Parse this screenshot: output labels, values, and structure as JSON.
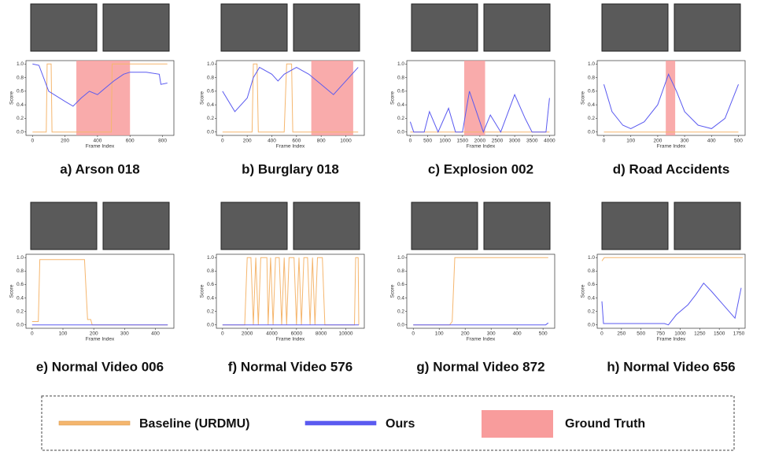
{
  "chart_data": [
    {
      "type": "line",
      "title": "a) Arson 018",
      "xlabel": "Frame Index",
      "ylabel": "Score",
      "xlim": [
        -40,
        870
      ],
      "xticks": [
        0,
        200,
        400,
        600,
        800
      ],
      "ylim": [
        -0.05,
        1.05
      ],
      "yticks": [
        {
          "value": 0,
          "label": "0.0"
        },
        {
          "value": 0.2,
          "label": "0.2"
        },
        {
          "value": 0.4,
          "label": "0.4"
        },
        {
          "value": 0.6,
          "label": "0.6"
        },
        {
          "value": 0.8,
          "label": "0.8"
        },
        {
          "value": 1,
          "label": "1.0"
        }
      ],
      "ground_truth": [
        [
          270,
          600
        ]
      ],
      "series": [
        {
          "x": [
            0,
            85,
            90,
            115,
            120,
            485,
            490,
            830
          ],
          "values": [
            0,
            0,
            1,
            1,
            0,
            0,
            1,
            1
          ]
        },
        {
          "x": [
            0,
            40,
            100,
            200,
            250,
            300,
            350,
            400,
            450,
            500,
            560,
            600,
            700,
            780,
            790,
            830
          ],
          "values": [
            1,
            0.98,
            0.6,
            0.45,
            0.38,
            0.5,
            0.6,
            0.55,
            0.65,
            0.75,
            0.85,
            0.88,
            0.88,
            0.85,
            0.7,
            0.72
          ]
        }
      ]
    },
    {
      "type": "line",
      "title": "b) Burglary 018",
      "xlabel": "Frame Index",
      "ylabel": "Score",
      "xlim": [
        -50,
        1150
      ],
      "xticks": [
        0,
        200,
        400,
        600,
        800,
        1000
      ],
      "ylim": [
        -0.05,
        1.05
      ],
      "yticks": [
        {
          "value": 0,
          "label": "0.0"
        },
        {
          "value": 0.2,
          "label": "0.2"
        },
        {
          "value": 0.4,
          "label": "0.4"
        },
        {
          "value": 0.6,
          "label": "0.6"
        },
        {
          "value": 0.8,
          "label": "0.8"
        },
        {
          "value": 1,
          "label": "1.0"
        }
      ],
      "ground_truth": [
        [
          720,
          1060
        ]
      ],
      "series": [
        {
          "x": [
            0,
            240,
            250,
            280,
            290,
            500,
            520,
            560,
            570,
            1100
          ],
          "values": [
            0,
            0,
            1,
            1,
            0,
            0,
            1,
            1,
            0,
            0
          ]
        },
        {
          "x": [
            0,
            100,
            200,
            250,
            300,
            400,
            450,
            500,
            600,
            700,
            800,
            900,
            1000,
            1100
          ],
          "values": [
            0.6,
            0.3,
            0.5,
            0.8,
            0.95,
            0.85,
            0.75,
            0.85,
            0.95,
            0.85,
            0.7,
            0.55,
            0.75,
            0.95
          ]
        }
      ]
    },
    {
      "type": "line",
      "title": "c) Explosion 002",
      "xlabel": "Frame Index",
      "ylabel": "Score",
      "xlim": [
        -100,
        4150
      ],
      "xticks": [
        0,
        500,
        1000,
        1500,
        2000,
        2500,
        3000,
        3500,
        4000
      ],
      "ylim": [
        -0.05,
        1.05
      ],
      "yticks": [
        {
          "value": 0,
          "label": "0.0"
        },
        {
          "value": 0.2,
          "label": "0.2"
        },
        {
          "value": 0.4,
          "label": "0.4"
        },
        {
          "value": 0.6,
          "label": "0.6"
        },
        {
          "value": 0.8,
          "label": "0.8"
        },
        {
          "value": 1,
          "label": "1.0"
        }
      ],
      "ground_truth": [
        [
          1550,
          2150
        ]
      ],
      "series": [
        {
          "x": [
            0,
            4000
          ],
          "values": [
            0,
            0
          ]
        },
        {
          "x": [
            0,
            100,
            400,
            550,
            800,
            1100,
            1300,
            1500,
            1700,
            1900,
            2100,
            2300,
            2600,
            3000,
            3300,
            3500,
            3900,
            4000
          ],
          "values": [
            0.15,
            0,
            0,
            0.3,
            0,
            0.35,
            0,
            0,
            0.6,
            0.3,
            0,
            0.25,
            0,
            0.55,
            0.2,
            0,
            0,
            0.5
          ]
        }
      ]
    },
    {
      "type": "line",
      "title": "d) Road Accidents",
      "xlabel": "Frame Index",
      "ylabel": "Score",
      "xlim": [
        -25,
        525
      ],
      "xticks": [
        0,
        100,
        200,
        300,
        400,
        500
      ],
      "ylim": [
        -0.05,
        1.05
      ],
      "yticks": [
        {
          "value": 0,
          "label": "0.0"
        },
        {
          "value": 0.2,
          "label": "0.2"
        },
        {
          "value": 0.4,
          "label": "0.4"
        },
        {
          "value": 0.6,
          "label": "0.6"
        },
        {
          "value": 0.8,
          "label": "0.8"
        },
        {
          "value": 1,
          "label": "1.0"
        }
      ],
      "ground_truth": [
        [
          230,
          265
        ]
      ],
      "series": [
        {
          "x": [
            0,
            500
          ],
          "values": [
            0,
            0
          ]
        },
        {
          "x": [
            0,
            30,
            70,
            100,
            150,
            200,
            240,
            270,
            300,
            350,
            400,
            450,
            500
          ],
          "values": [
            0.7,
            0.3,
            0.1,
            0.05,
            0.15,
            0.4,
            0.85,
            0.6,
            0.3,
            0.1,
            0.05,
            0.2,
            0.7
          ]
        }
      ]
    },
    {
      "type": "line",
      "title": "e) Normal Video 006",
      "xlabel": "Frame Index",
      "ylabel": "Score",
      "xlim": [
        -20,
        460
      ],
      "xticks": [
        0,
        100,
        200,
        300,
        400
      ],
      "ylim": [
        -0.05,
        1.05
      ],
      "yticks": [
        {
          "value": 0,
          "label": "0.0"
        },
        {
          "value": 0.2,
          "label": "0.2"
        },
        {
          "value": 0.4,
          "label": "0.4"
        },
        {
          "value": 0.6,
          "label": "0.6"
        },
        {
          "value": 0.8,
          "label": "0.8"
        },
        {
          "value": 1,
          "label": "1.0"
        }
      ],
      "ground_truth": [],
      "series": [
        {
          "x": [
            0,
            20,
            25,
            170,
            180,
            190,
            195,
            440
          ],
          "values": [
            0.05,
            0.05,
            0.97,
            0.97,
            0.08,
            0.08,
            0,
            0
          ]
        },
        {
          "x": [
            0,
            440
          ],
          "values": [
            0,
            0
          ]
        }
      ]
    },
    {
      "type": "line",
      "title": "f) Normal Video 576",
      "xlabel": "Frame Index",
      "ylabel": "Score",
      "xlim": [
        -500,
        11500
      ],
      "xticks": [
        0,
        2000,
        4000,
        6000,
        8000,
        10000
      ],
      "ylim": [
        -0.05,
        1.05
      ],
      "yticks": [
        {
          "value": 0,
          "label": "0.0"
        },
        {
          "value": 0.2,
          "label": "0.2"
        },
        {
          "value": 0.4,
          "label": "0.4"
        },
        {
          "value": 0.6,
          "label": "0.6"
        },
        {
          "value": 0.8,
          "label": "0.8"
        },
        {
          "value": 1,
          "label": "1.0"
        }
      ],
      "ground_truth": [],
      "series": [
        {
          "x": [
            0,
            1800,
            2000,
            2300,
            2500,
            2700,
            2900,
            3100,
            3600,
            3700,
            3900,
            4100,
            4300,
            4600,
            4800,
            5000,
            5200,
            5400,
            5800,
            6000,
            6200,
            6400,
            6600,
            6900,
            7100,
            7300,
            7500,
            7700,
            8100,
            8300,
            10700,
            10800,
            11000,
            11050
          ],
          "values": [
            0,
            0,
            1,
            1,
            0,
            1,
            0,
            1,
            1,
            0,
            1,
            0,
            1,
            1,
            0,
            1,
            0,
            1,
            1,
            0,
            1,
            0,
            1,
            1,
            0,
            1,
            0,
            1,
            1,
            0,
            0,
            1,
            1,
            0
          ]
        },
        {
          "x": [
            0,
            11050
          ],
          "values": [
            0,
            0
          ]
        }
      ]
    },
    {
      "type": "line",
      "title": "g) Normal Video 872",
      "xlabel": "Frame Index",
      "ylabel": "Score",
      "xlim": [
        -25,
        545
      ],
      "xticks": [
        0,
        100,
        200,
        300,
        400,
        500
      ],
      "ylim": [
        -0.05,
        1.05
      ],
      "yticks": [
        {
          "value": 0,
          "label": "0.0"
        },
        {
          "value": 0.2,
          "label": "0.2"
        },
        {
          "value": 0.4,
          "label": "0.4"
        },
        {
          "value": 0.6,
          "label": "0.6"
        },
        {
          "value": 0.8,
          "label": "0.8"
        },
        {
          "value": 1,
          "label": "1.0"
        }
      ],
      "ground_truth": [],
      "series": [
        {
          "x": [
            0,
            140,
            150,
            160,
            520
          ],
          "values": [
            0,
            0,
            0.05,
            1,
            1
          ]
        },
        {
          "x": [
            0,
            510,
            520
          ],
          "values": [
            0,
            0,
            0.03
          ]
        }
      ]
    },
    {
      "type": "line",
      "title": "h) Normal Video 656",
      "xlabel": "Frame Index",
      "ylabel": "Score",
      "xlim": [
        -60,
        1830
      ],
      "xticks": [
        0,
        250,
        500,
        750,
        1000,
        1250,
        1500,
        1750
      ],
      "ylim": [
        -0.05,
        1.05
      ],
      "yticks": [
        {
          "value": 0,
          "label": "0.0"
        },
        {
          "value": 0.2,
          "label": "0.2"
        },
        {
          "value": 0.4,
          "label": "0.4"
        },
        {
          "value": 0.6,
          "label": "0.6"
        },
        {
          "value": 0.8,
          "label": "0.8"
        },
        {
          "value": 1,
          "label": "1.0"
        }
      ],
      "ground_truth": [],
      "series": [
        {
          "x": [
            0,
            30,
            1800
          ],
          "values": [
            0.95,
            1,
            1
          ]
        },
        {
          "x": [
            0,
            20,
            800,
            850,
            950,
            1100,
            1200,
            1300,
            1400,
            1550,
            1700,
            1780
          ],
          "values": [
            0.35,
            0.02,
            0.02,
            0,
            0.15,
            0.3,
            0.45,
            0.62,
            0.5,
            0.3,
            0.1,
            0.55
          ]
        }
      ]
    }
  ],
  "legend": {
    "items": [
      {
        "name": "Baseline (URDMU)",
        "color": "#f5b66e"
      },
      {
        "name": "Ours",
        "color": "#5a5af0"
      },
      {
        "name": "Ground Truth",
        "color": "#f89c9c"
      }
    ]
  }
}
